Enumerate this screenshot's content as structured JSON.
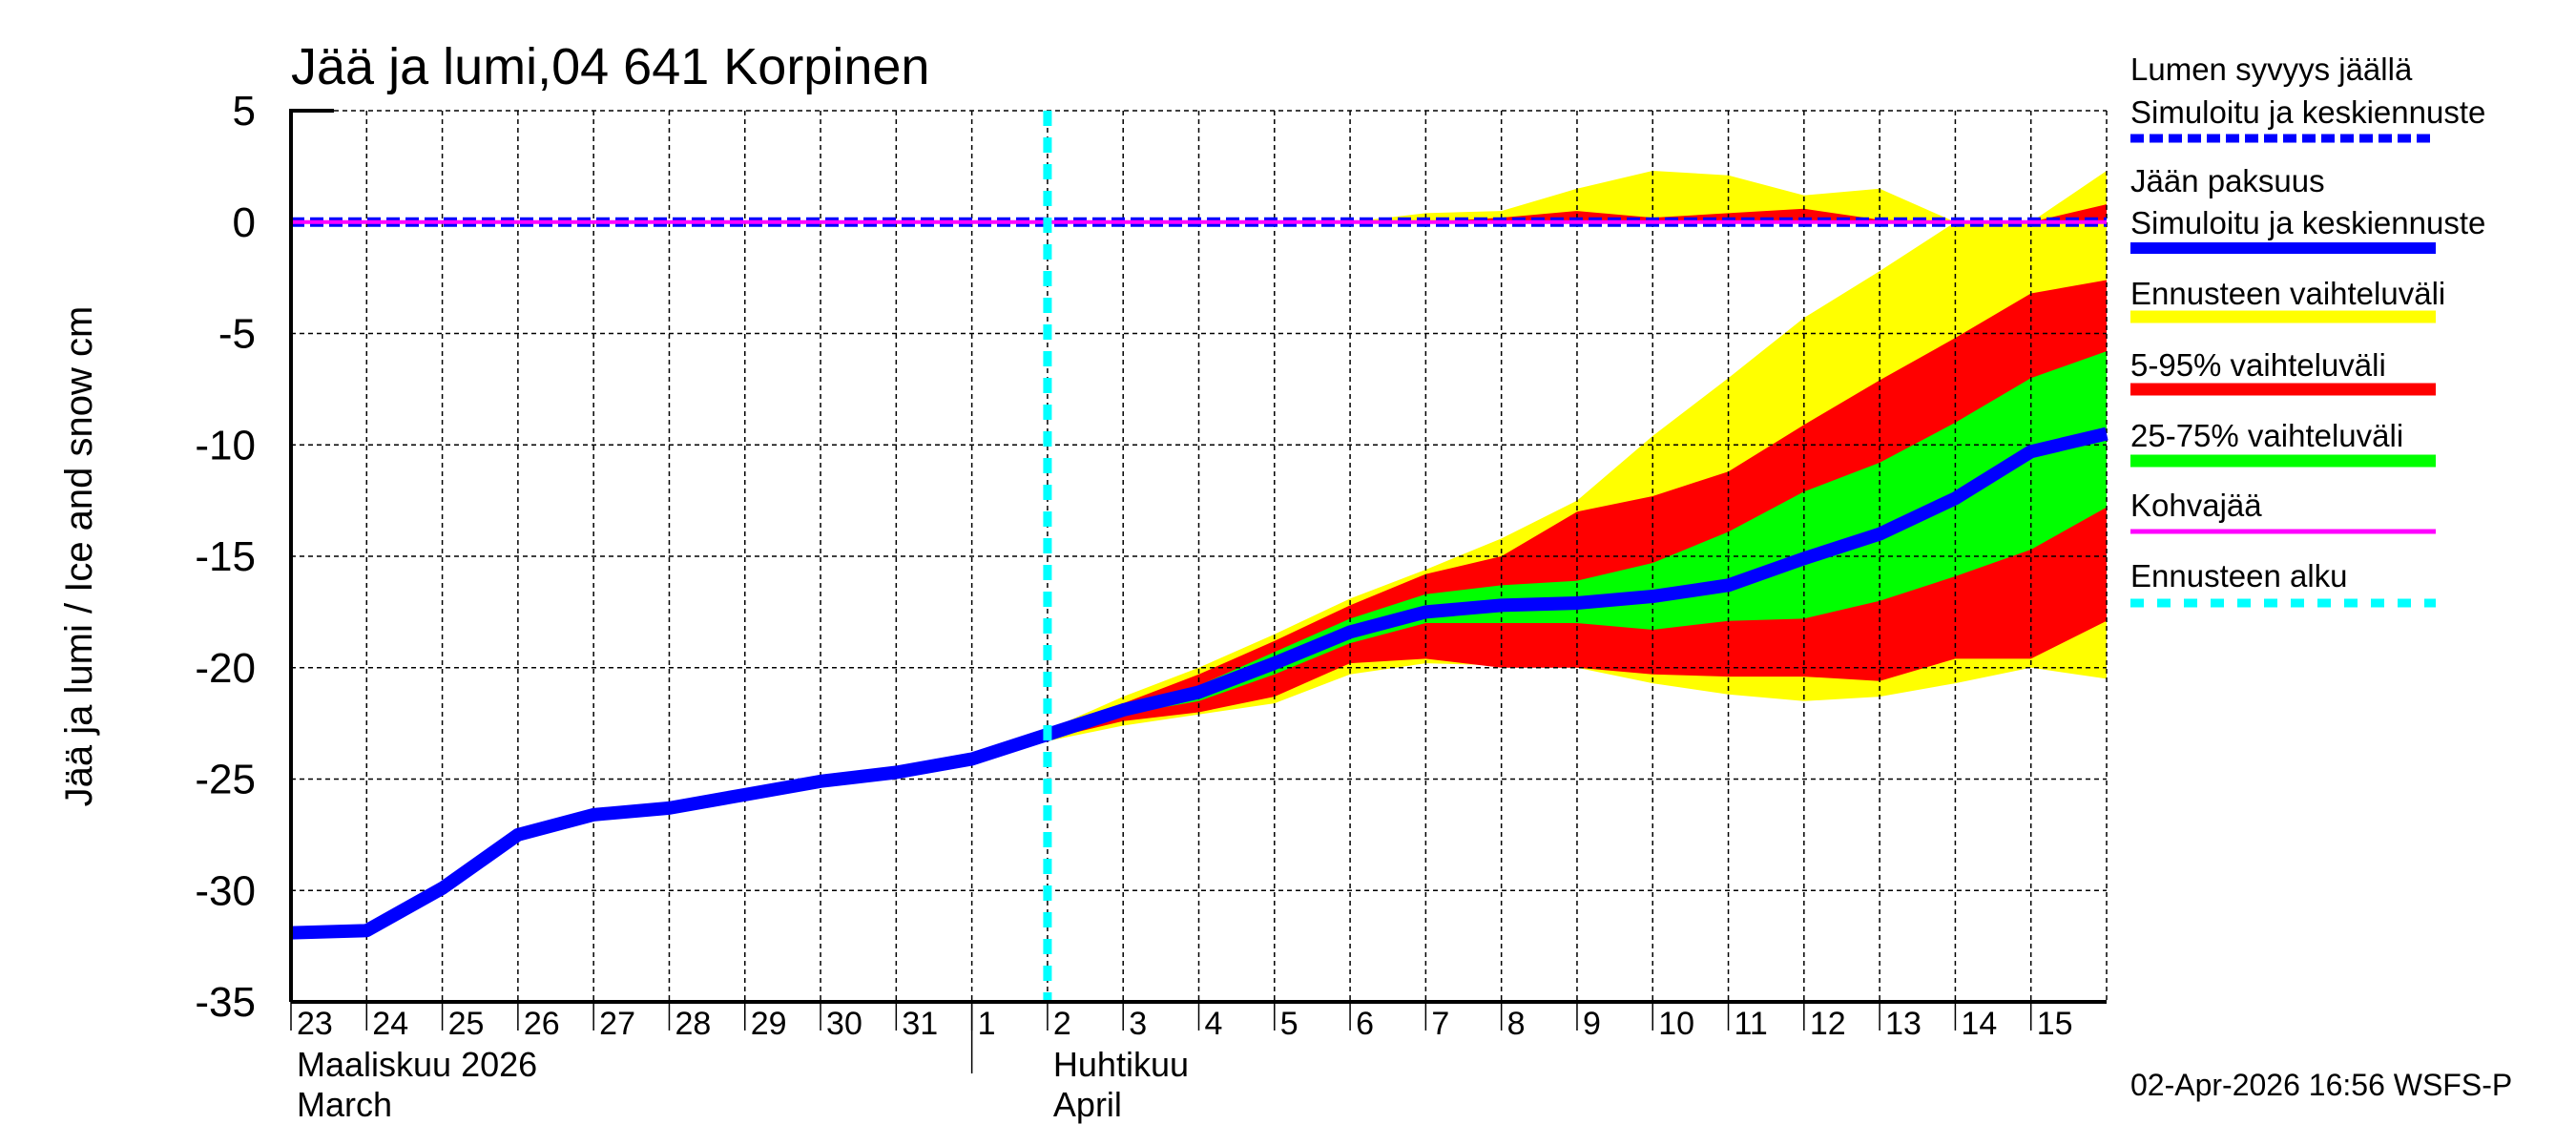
{
  "chart_data": {
    "type": "area",
    "title": "Jää ja lumi,04 641 Korpinen",
    "ylabel": "Jää ja lumi / Ice and snow    cm",
    "xlabel": "",
    "ylim": [
      -35,
      5
    ],
    "yticks": [
      5,
      0,
      -5,
      -10,
      -15,
      -20,
      -25,
      -30,
      -35
    ],
    "grid": true,
    "legend_position": "right",
    "x_dates": [
      "2026-03-23",
      "2026-03-24",
      "2026-03-25",
      "2026-03-26",
      "2026-03-27",
      "2026-03-28",
      "2026-03-29",
      "2026-03-30",
      "2026-03-31",
      "2026-04-01",
      "2026-04-02",
      "2026-04-03",
      "2026-04-04",
      "2026-04-05",
      "2026-04-06",
      "2026-04-07",
      "2026-04-08",
      "2026-04-09",
      "2026-04-10",
      "2026-04-11",
      "2026-04-12",
      "2026-04-13",
      "2026-04-14",
      "2026-04-15",
      "2026-04-16"
    ],
    "xtick_labels": [
      "23",
      "24",
      "25",
      "26",
      "27",
      "28",
      "29",
      "30",
      "31",
      "1",
      "2",
      "3",
      "4",
      "5",
      "6",
      "7",
      "8",
      "9",
      "10",
      "11",
      "12",
      "13",
      "14",
      "15"
    ],
    "months": [
      {
        "label_fi": "Maaliskuu 2026",
        "label_en": "March",
        "start": "2026-03-23"
      },
      {
        "label_fi": "Huhtikuu",
        "label_en": "April",
        "start": "2026-04-02"
      }
    ],
    "forecast_start": "2026-04-02",
    "colors": {
      "ice": "#0000ff",
      "snow": "#0000ff",
      "range_full": "#ffff00",
      "range_5_95": "#ff0000",
      "range_25_75": "#00ff00",
      "slush": "#ff00ff",
      "forecast_start": "#00ffff"
    },
    "ice_thickness": {
      "dates": [
        "2026-03-23",
        "2026-03-24",
        "2026-03-25",
        "2026-03-26",
        "2026-03-27",
        "2026-03-28",
        "2026-03-29",
        "2026-03-30",
        "2026-03-31",
        "2026-04-01",
        "2026-04-02",
        "2026-04-03",
        "2026-04-04",
        "2026-04-05",
        "2026-04-06",
        "2026-04-07",
        "2026-04-08",
        "2026-04-09",
        "2026-04-10",
        "2026-04-11",
        "2026-04-12",
        "2026-04-13",
        "2026-04-14",
        "2026-04-15",
        "2026-04-16"
      ],
      "median": [
        -31.9,
        -31.8,
        -29.9,
        -27.5,
        -26.6,
        -26.3,
        -25.7,
        -25.1,
        -24.7,
        -24.1,
        -23.0,
        -21.9,
        -21.1,
        -19.8,
        -18.4,
        -17.5,
        -17.2,
        -17.1,
        -16.8,
        -16.3,
        -15.1,
        -14.0,
        -12.4,
        -10.3,
        -9.5
      ]
    },
    "ice_forecast_bands": {
      "dates": [
        "2026-04-02",
        "2026-04-03",
        "2026-04-04",
        "2026-04-05",
        "2026-04-06",
        "2026-04-07",
        "2026-04-08",
        "2026-04-09",
        "2026-04-10",
        "2026-04-11",
        "2026-04-12",
        "2026-04-13",
        "2026-04-14",
        "2026-04-15",
        "2026-04-16"
      ],
      "max": [
        -22.8,
        -21.3,
        -20.0,
        -18.5,
        -16.9,
        -15.6,
        -14.2,
        -12.5,
        -9.6,
        -7.0,
        -4.3,
        -2.2,
        0,
        0,
        0
      ],
      "p95": [
        -22.9,
        -21.6,
        -20.3,
        -18.8,
        -17.2,
        -15.8,
        -15.0,
        -13.0,
        -12.3,
        -11.2,
        -9.1,
        -7.1,
        -5.2,
        -3.2,
        -2.6
      ],
      "p75": [
        -23.0,
        -21.8,
        -20.8,
        -19.3,
        -17.8,
        -16.7,
        -16.3,
        -16.1,
        -15.3,
        -13.9,
        -12.1,
        -10.8,
        -9.0,
        -7.0,
        -5.8
      ],
      "p25": [
        -23.1,
        -22.1,
        -21.5,
        -20.3,
        -18.9,
        -18.0,
        -18.0,
        -18.0,
        -18.3,
        -17.9,
        -17.8,
        -17.0,
        -15.9,
        -14.7,
        -12.8
      ],
      "p5": [
        -23.2,
        -22.4,
        -22.0,
        -21.3,
        -19.8,
        -19.6,
        -20.0,
        -20.0,
        -20.3,
        -20.4,
        -20.4,
        -20.6,
        -19.6,
        -19.6,
        -17.9
      ],
      "min": [
        -23.3,
        -22.6,
        -22.1,
        -21.6,
        -20.3,
        -19.8,
        -19.9,
        -20.0,
        -20.7,
        -21.2,
        -21.5,
        -21.3,
        -20.7,
        -20.0,
        -20.5
      ]
    },
    "snow_forecast_bands": {
      "dates": [
        "2026-04-02",
        "2026-04-03",
        "2026-04-04",
        "2026-04-05",
        "2026-04-06",
        "2026-04-07",
        "2026-04-08",
        "2026-04-09",
        "2026-04-10",
        "2026-04-11",
        "2026-04-12",
        "2026-04-13",
        "2026-04-14",
        "2026-04-15",
        "2026-04-16"
      ],
      "max": [
        0,
        0,
        0,
        0,
        0,
        0.4,
        0.5,
        1.5,
        2.3,
        2.1,
        1.2,
        1.5,
        0,
        0,
        2.3
      ],
      "p95": [
        0,
        0,
        0,
        0,
        0,
        0,
        0.2,
        0.5,
        0.2,
        0.4,
        0.6,
        0.1,
        0,
        0,
        0.8
      ]
    },
    "snow_depth": 0,
    "slush": 0,
    "legend": [
      {
        "label": "Lumen syvyys jäällä",
        "label2": "Simuloitu ja keskiennuste",
        "style": "dashed",
        "color": "#0000ff"
      },
      {
        "label": "Jään paksuus",
        "label2": "Simuloitu ja keskiennuste",
        "style": "thick",
        "color": "#0000ff"
      },
      {
        "label": "Ennusteen vaihteluväli",
        "style": "solid",
        "color": "#ffff00"
      },
      {
        "label": "5-95% vaihteluväli",
        "style": "solid",
        "color": "#ff0000"
      },
      {
        "label": "25-75% vaihteluväli",
        "style": "solid",
        "color": "#00ff00"
      },
      {
        "label": "Kohvajää",
        "style": "thin",
        "color": "#ff00ff"
      },
      {
        "label": "Ennusteen alku",
        "style": "dotted",
        "color": "#00ffff"
      }
    ],
    "footer": "02-Apr-2026 16:56 WSFS-P"
  }
}
